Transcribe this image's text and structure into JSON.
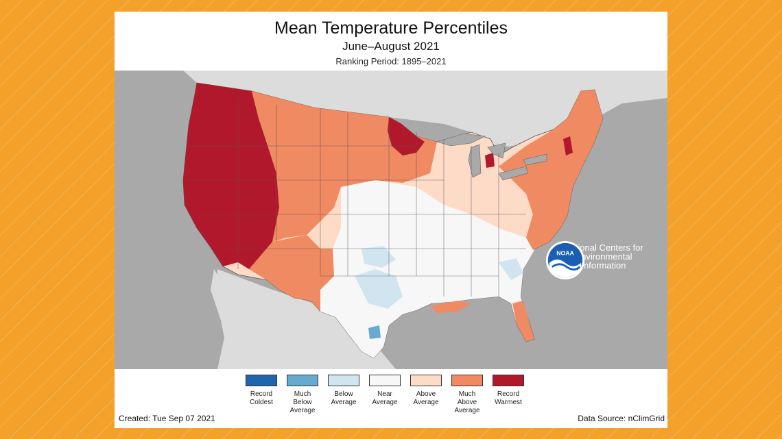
{
  "map": {
    "title": "Mean Temperature Percentiles",
    "subtitle": "June–August 2021",
    "ranking_period": "Ranking Period: 1895–2021",
    "created": "Created: Tue Sep 07 2021",
    "source": "Data Source: nClimGrid",
    "org_name": "National Centers for\nEnvironmental\nInformation",
    "logo_text": "NOAA",
    "colors": {
      "record_coldest": "#2166ac",
      "much_below": "#67a9cf",
      "below": "#d1e5f0",
      "near": "#f7f7f7",
      "above": "#fddbc7",
      "much_above": "#ef8a62",
      "record_warmest": "#b2182b",
      "land_outside": "#dcdcdc",
      "water": "#a9a9a9"
    },
    "legend": [
      {
        "label": "Record\nColdest",
        "color": "#2166ac"
      },
      {
        "label": "Much\nBelow\nAverage",
        "color": "#67a9cf"
      },
      {
        "label": "Below\nAverage",
        "color": "#d1e5f0"
      },
      {
        "label": "Near\nAverage",
        "color": "#f7f7f7"
      },
      {
        "label": "Above\nAverage",
        "color": "#fddbc7"
      },
      {
        "label": "Much\nAbove\nAverage",
        "color": "#ef8a62"
      },
      {
        "label": "Record\nWarmest",
        "color": "#b2182b"
      }
    ]
  }
}
